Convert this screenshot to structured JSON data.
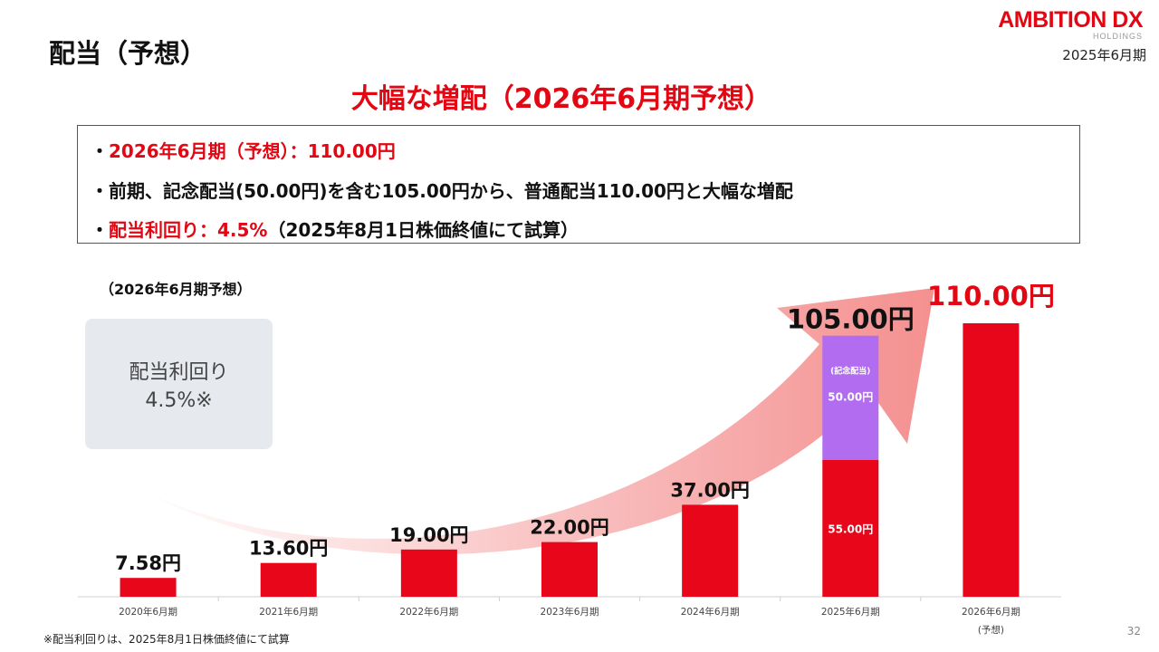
{
  "slide": {
    "title": "配当（予想）",
    "period": "2025年6月期",
    "headline": "大幅な増配（2026年6月期予想）",
    "page_number": "32",
    "footnote": "※配当利回りは、2025年8月1日株価終値にて試算"
  },
  "logo": {
    "main": "AMBITION DX",
    "sub": "HOLDINGS"
  },
  "summary": {
    "bullet1_dot": "・",
    "bullet1_red": "2026年6月期（予想）：110.00円",
    "bullet2": "・前期、記念配当(50.00円)を含む105.00円から、普通配当110.00円と大幅な増配",
    "bullet3_dot": "・",
    "bullet3_red": "配当利回り：4.5%",
    "bullet3_rest": "（2025年8月1日株価終値にて試算）"
  },
  "yield_box": {
    "line1": "配当利回り",
    "line2": "4.5%※"
  },
  "colors": {
    "regular": "#e8061a",
    "commemorative": "#b16cf0",
    "accent": "#e30613",
    "arrow": "#f48a8a"
  },
  "chart_data": {
    "type": "bar",
    "stacked": true,
    "subtitle": "（2026年6月期予想）",
    "categories": [
      "2020年6月期",
      "2021年6月期",
      "2022年6月期",
      "2023年6月期",
      "2024年6月期",
      "2025年6月期",
      "2026年6月期"
    ],
    "category_notes": [
      "",
      "",
      "",
      "",
      "",
      "",
      "(予想)"
    ],
    "series": [
      {
        "key": "regular",
        "values": [
          7.58,
          13.6,
          19.0,
          22.0,
          37.0,
          55.0,
          110.0
        ]
      },
      {
        "key": "commemorative",
        "values": [
          0,
          0,
          0,
          0,
          0,
          50.0,
          0
        ]
      }
    ],
    "total_labels": [
      "7.58円",
      "13.60円",
      "19.00円",
      "22.00円",
      "37.00円",
      "105.00円",
      "110.00円"
    ],
    "inner_labels": {
      "category": "2025年6月期",
      "commemorative_caption": "(記念配当)",
      "commemorative_value": "50.00円",
      "regular_value": "55.00円"
    },
    "ylim": [
      0,
      110
    ],
    "grid": false,
    "legend": "none"
  }
}
